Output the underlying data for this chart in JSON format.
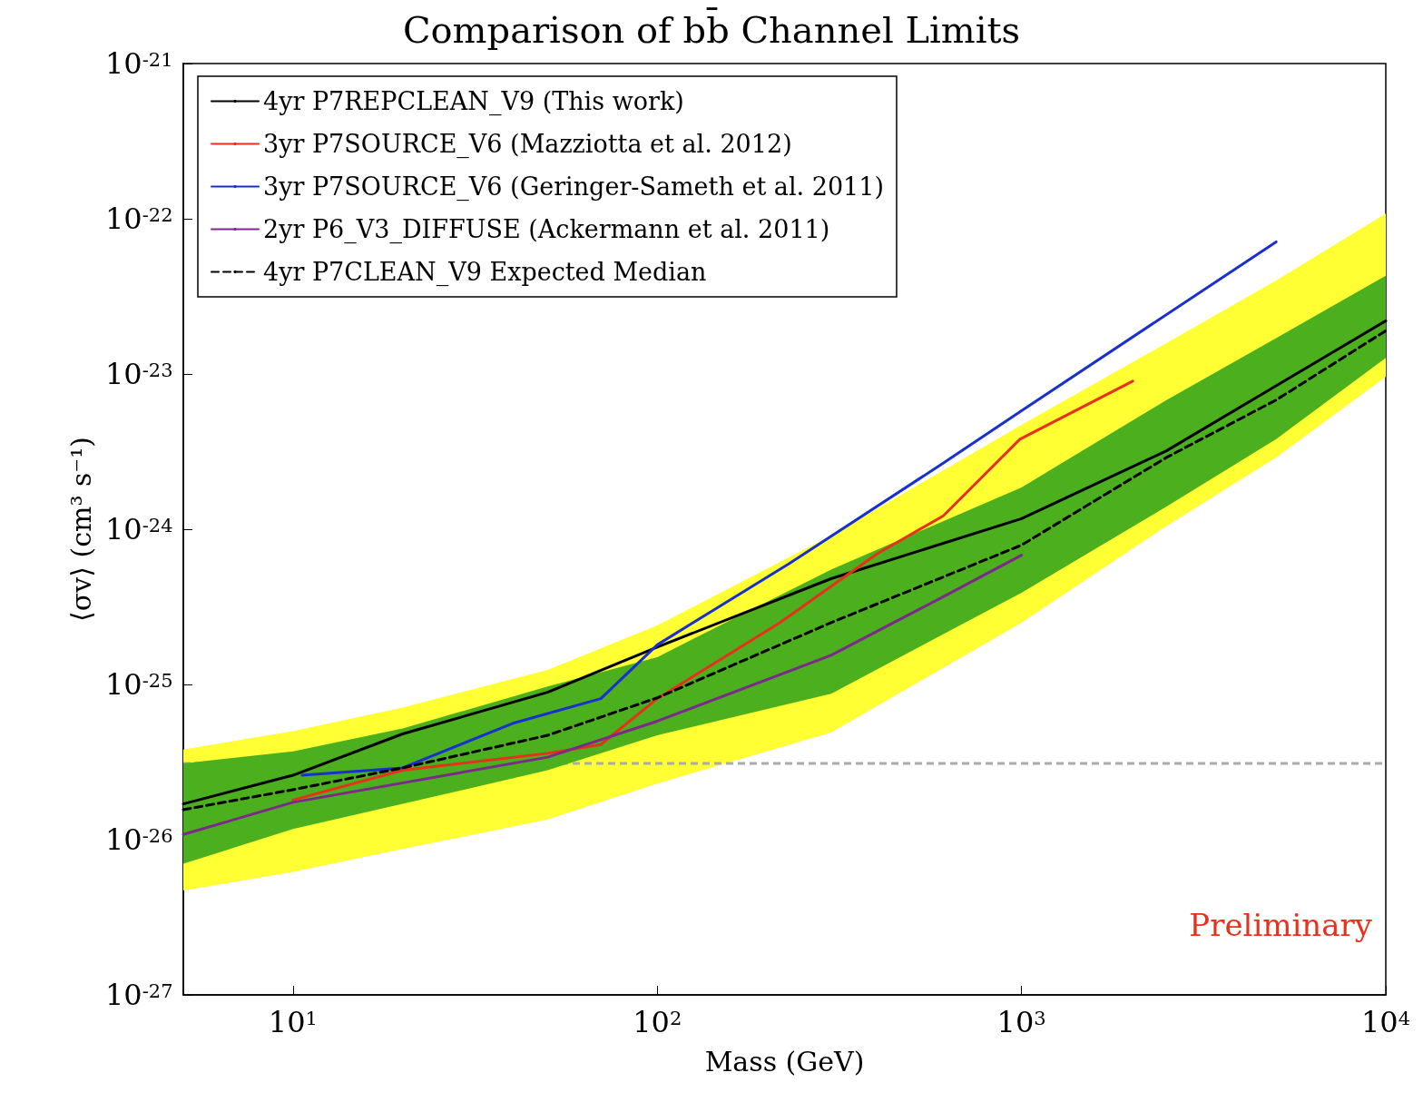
{
  "chart_data": {
    "type": "line",
    "title": "Comparison of bb̄ Channel Limits",
    "xlabel": "Mass (GeV)",
    "ylabel": "⟨σv⟩ (cm³ s⁻¹)",
    "log": "xy",
    "xlim": [
      5,
      10000
    ],
    "ylim": [
      1e-27,
      1e-21
    ],
    "xticks": [
      {
        "value": 10,
        "label": "10$^{1}$"
      },
      {
        "value": 100,
        "label": "10$^{2}$"
      },
      {
        "value": 1000,
        "label": "10$^{3}$"
      },
      {
        "value": 10000,
        "label": "10$^{4}$"
      }
    ],
    "yticks": [
      {
        "value": 1e-27,
        "label": "10$^{-27}$"
      },
      {
        "value": 1e-26,
        "label": "10$^{-26}$"
      },
      {
        "value": 1e-25,
        "label": "10$^{-25}$"
      },
      {
        "value": 1e-24,
        "label": "10$^{-24}$"
      },
      {
        "value": 1e-23,
        "label": "10$^{-23}$"
      },
      {
        "value": 1e-22,
        "label": "10$^{-22}$"
      },
      {
        "value": 1e-21,
        "label": "10$^{-21}$"
      }
    ],
    "legend": "top left",
    "marker": "none",
    "series": [
      {
        "type": "line",
        "color": "#ffff33",
        "x": [
          5,
          10,
          20,
          50,
          100,
          300,
          1000,
          2500,
          5000,
          10000
        ],
        "values": [
          null,
          null,
          null,
          null,
          null,
          null,
          null,
          null,
          null,
          null
        ],
        "lower": [
          4.7e-27,
          6.2e-27,
          8.7e-27,
          1.35e-26,
          2.3e-26,
          4.9e-26,
          2.5e-25,
          1.05e-24,
          2.9e-24,
          9.6e-24
        ],
        "upper": [
          3.8e-26,
          5e-26,
          7.1e-26,
          1.24e-25,
          2.4e-25,
          9.1e-25,
          4.7e-24,
          1.58e-23,
          4e-23,
          1.08e-22
        ]
      },
      {
        "type": "line",
        "color": "#4caf1e",
        "x": [
          5,
          10,
          20,
          50,
          100,
          300,
          1000,
          2500,
          5000,
          10000
        ],
        "values": [
          null,
          null,
          null,
          null,
          null,
          null,
          null,
          null,
          null,
          null
        ],
        "lower": [
          7e-27,
          1.17e-26,
          1.7e-26,
          2.8e-26,
          4.7e-26,
          8.7e-26,
          3.9e-25,
          1.4e-24,
          3.8e-24,
          1.27e-23
        ],
        "upper": [
          3.1e-26,
          3.7e-26,
          5.2e-26,
          9.7e-26,
          1.5e-25,
          5.5e-25,
          1.86e-24,
          6.8e-24,
          1.7e-23,
          4.3e-23
        ]
      },
      {
        "name": "4yr P7REPCLEAN_V9 (This work)",
        "color": "#000000",
        "x": [
          5,
          10,
          20,
          50,
          100,
          300,
          1000,
          2500,
          5000,
          10000
        ],
        "values": [
          1.7e-26,
          2.6e-26,
          4.8e-26,
          8.9e-26,
          1.74e-25,
          4.8e-25,
          1.17e-24,
          3.2e-24,
          8.4e-24,
          2.2e-23
        ]
      },
      {
        "name": "3yr P7SOURCE_V6 (Mazziotta et al. 2012)",
        "color": "#e8301c",
        "x": [
          10,
          20,
          50,
          70,
          100,
          217,
          400,
          610,
          990,
          2020
        ],
        "values": [
          1.8e-26,
          2.8e-26,
          3.6e-26,
          4.1e-26,
          8.1e-26,
          2.5e-25,
          6.9e-25,
          1.22e-24,
          3.8e-24,
          9e-24
        ]
      },
      {
        "name": "3yr P7SOURCE_V6 (Geringer-Sameth et al. 2011)",
        "color": "#1a2fd0",
        "x": [
          10.6,
          20,
          40,
          70,
          100,
          230,
          600,
          1000,
          5000
        ],
        "values": [
          2.6e-26,
          2.9e-26,
          5.6e-26,
          8.1e-26,
          1.8e-25,
          6e-25,
          2.6e-24,
          5.8e-24,
          7.1e-23
        ]
      },
      {
        "name": "2yr P6_V3_DIFFUSE (Ackermann et al. 2011)",
        "color": "#7b2a8c",
        "x": [
          5,
          10,
          50,
          100,
          300,
          600,
          1000
        ],
        "values": [
          1.08e-26,
          1.74e-26,
          3.4e-26,
          5.8e-26,
          1.54e-25,
          3.6e-25,
          6.8e-25
        ]
      },
      {
        "name": "4yr P7CLEAN_V9 Expected Median",
        "color": "#000000",
        "line_style": "dashed",
        "x": [
          5,
          10,
          20,
          50,
          100,
          300,
          1000,
          2500,
          5000,
          10000
        ],
        "values": [
          1.56e-26,
          2.1e-26,
          2.9e-26,
          4.7e-26,
          8.2e-26,
          2.5e-25,
          7.9e-25,
          2.9e-24,
          6.8e-24,
          1.9e-23
        ]
      }
    ],
    "ref_lines": [
      {
        "axis": "y",
        "value": 3.1e-26,
        "color": "#aaaaaa",
        "line_style": "dashed"
      }
    ],
    "annotations": [
      "Preliminary"
    ]
  }
}
